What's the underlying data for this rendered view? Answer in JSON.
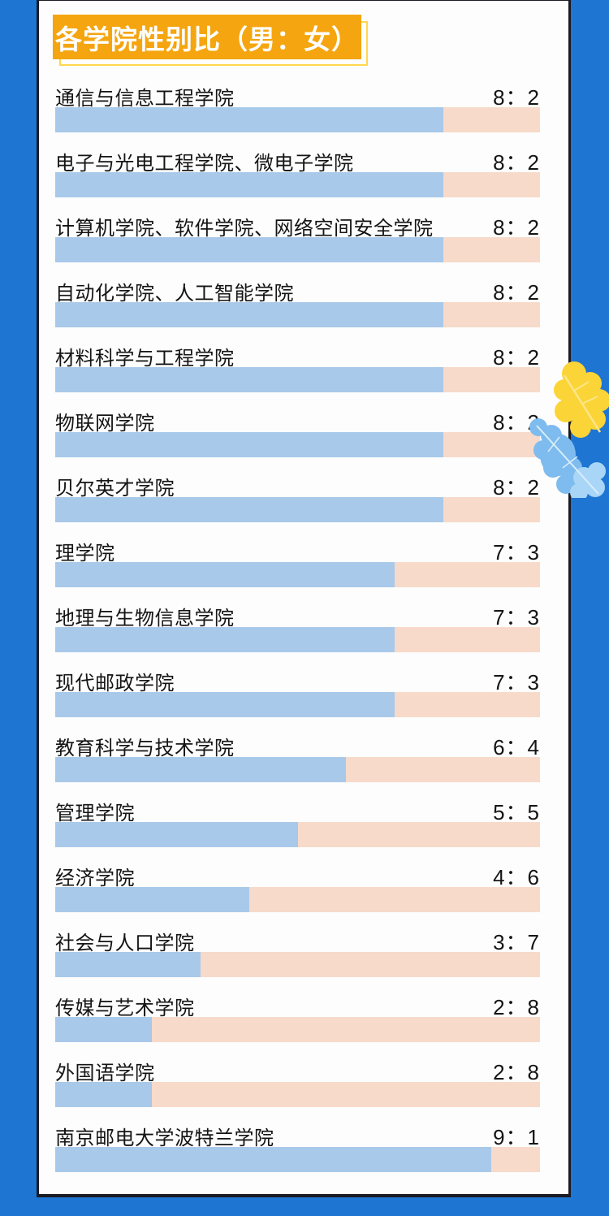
{
  "title": {
    "text": "各学院性别比（男：女）"
  },
  "theme": {
    "border_blue": "#1E75D2",
    "card_bg": "#FDFDFD",
    "edge_dark": "#1A1A24",
    "title_fill": "#F5A50F",
    "title_outline": "#FFD74E",
    "title_text": "#FFFFFF",
    "text_dark": "#141414",
    "male_blue": "#A8C9E9",
    "female_pink": "#F7DAC9",
    "leaf_yellow": "#FBD437",
    "leaf_yellow_vein": "#FDE68A",
    "leaf_blue": "#7EBBEE",
    "leaf_blue_light": "#A9D6F7",
    "leaf_blue_vein": "#D9EEFC"
  },
  "chart_data": {
    "type": "bar",
    "title": "各学院性别比（男：女）",
    "orientation": "horizontal",
    "stacked": true,
    "value_scale": "each bar totals 10 (ratio parts)",
    "categories": [
      "通信与信息工程学院",
      "电子与光电工程学院、微电子学院",
      "计算机学院、软件学院、网络空间安全学院",
      "自动化学院、人工智能学院",
      "材料科学与工程学院",
      "物联网学院",
      "贝尔英才学院",
      "理学院",
      "地理与生物信息学院",
      "现代邮政学院",
      "教育科学与技术学院",
      "管理学院",
      "经济学院",
      "社会与人口学院",
      "传媒与艺术学院",
      "外国语学院",
      "南京邮电大学波特兰学院"
    ],
    "series": [
      {
        "name": "男",
        "values": [
          8,
          8,
          8,
          8,
          8,
          8,
          8,
          7,
          7,
          7,
          6,
          5,
          4,
          3,
          2,
          2,
          9
        ]
      },
      {
        "name": "女",
        "values": [
          2,
          2,
          2,
          2,
          2,
          2,
          2,
          3,
          3,
          3,
          4,
          5,
          6,
          7,
          8,
          8,
          1
        ]
      }
    ],
    "ratio_labels": [
      "8：2",
      "8：2",
      "8：2",
      "8：2",
      "8：2",
      "8：2",
      "8：2",
      "7：3",
      "7：3",
      "7：3",
      "6：4",
      "5：5",
      "4：6",
      "3：7",
      "2：8",
      "2：8",
      "9：1"
    ],
    "legend": "none",
    "grid": false
  }
}
